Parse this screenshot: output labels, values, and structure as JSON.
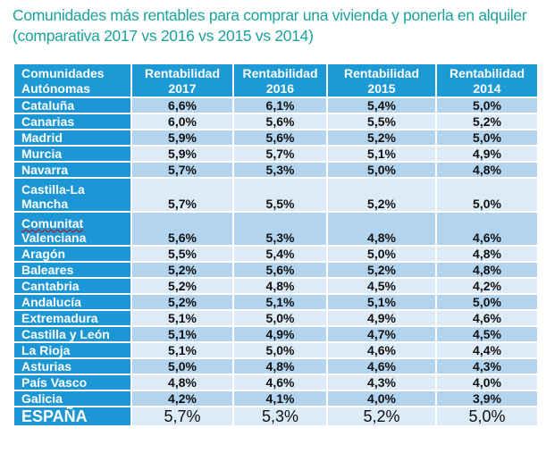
{
  "title": {
    "line1": "Comunidades más rentables para comprar una vivienda y ponerla en alquiler",
    "line2": "(comparativa 2017 vs 2016 vs 2015 vs 2014)"
  },
  "colors": {
    "title": "#1aa39e",
    "header": "#1c9ad6",
    "row_light": "#dcebf7",
    "row_dark": "#b3d4ee"
  },
  "table": {
    "headers": [
      {
        "l1": "Comunidades",
        "l2": "Autónomas"
      },
      {
        "l1": "Rentabilidad",
        "l2": "2017"
      },
      {
        "l1": "Rentabilidad",
        "l2": "2016"
      },
      {
        "l1": "Rentabilidad",
        "l2": "2015"
      },
      {
        "l1": "Rentabilidad",
        "l2": "2014"
      }
    ],
    "rows": [
      {
        "l1": "Cataluña",
        "l2": "",
        "v": [
          "6,6%",
          "6,1%",
          "5,4%",
          "5,0%"
        ]
      },
      {
        "l1": "Canarias",
        "l2": "",
        "v": [
          "6,0%",
          "5,6%",
          "5,5%",
          "5,2%"
        ]
      },
      {
        "l1": "Madrid",
        "l2": "",
        "v": [
          "5,9%",
          "5,6%",
          "5,2%",
          "5,0%"
        ]
      },
      {
        "l1": "Murcia",
        "l2": "",
        "v": [
          "5,9%",
          "5,7%",
          "5,1%",
          "4,9%"
        ]
      },
      {
        "l1": "Navarra",
        "l2": "",
        "v": [
          "5,7%",
          "5,3%",
          "5,0%",
          "4,8%"
        ]
      },
      {
        "l1": "Castilla-La",
        "l2": "Mancha",
        "v": [
          "5,7%",
          "5,5%",
          "5,2%",
          "5,0%"
        ]
      },
      {
        "l1": "Comunitat",
        "l2": "Valenciana",
        "v": [
          "5,6%",
          "5,3%",
          "4,8%",
          "4,6%"
        ]
      },
      {
        "l1": "Aragón",
        "l2": "",
        "v": [
          "5,5%",
          "5,4%",
          "5,0%",
          "4,8%"
        ]
      },
      {
        "l1": "Baleares",
        "l2": "",
        "v": [
          "5,2%",
          "5,6%",
          "5,2%",
          "4,8%"
        ]
      },
      {
        "l1": "Cantabria",
        "l2": "",
        "v": [
          "5,2%",
          "4,8%",
          "4,5%",
          "4,2%"
        ]
      },
      {
        "l1": "Andalucía",
        "l2": "",
        "v": [
          "5,2%",
          "5,1%",
          "5,1%",
          "5,0%"
        ]
      },
      {
        "l1": "Extremadura",
        "l2": "",
        "v": [
          "5,1%",
          "5,0%",
          "4,9%",
          "4,6%"
        ]
      },
      {
        "l1": "Castilla y León",
        "l2": "",
        "v": [
          "5,1%",
          "4,9%",
          "4,7%",
          "4,5%"
        ]
      },
      {
        "l1": "La Rioja",
        "l2": "",
        "v": [
          "5,1%",
          "5,0%",
          "4,6%",
          "4,4%"
        ]
      },
      {
        "l1": "Asturias",
        "l2": "",
        "v": [
          "5,0%",
          "4,8%",
          "4,6%",
          "4,3%"
        ]
      },
      {
        "l1": "País Vasco",
        "l2": "",
        "v": [
          "4,8%",
          "4,6%",
          "4,3%",
          "4,0%"
        ]
      },
      {
        "l1": "Galicia",
        "l2": "",
        "v": [
          "4,2%",
          "4,1%",
          "4,0%",
          "3,9%"
        ]
      }
    ],
    "total": {
      "label": "ESPAÑA",
      "v": [
        "5,7%",
        "5,3%",
        "5,2%",
        "5,0%"
      ]
    }
  }
}
